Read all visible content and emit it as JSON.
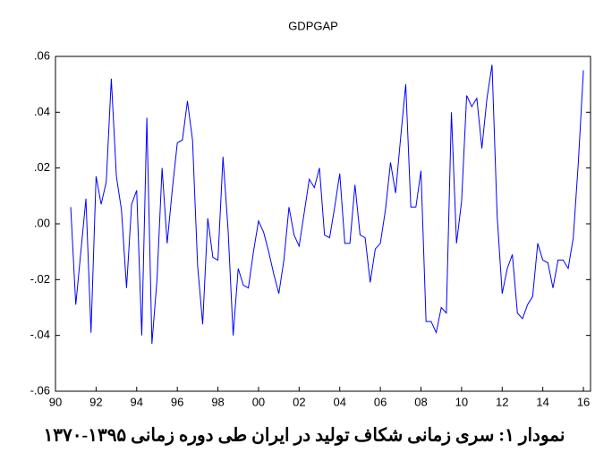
{
  "chart_data": {
    "type": "line",
    "title": "GDPGAP",
    "caption": "نمودار ۱: سری زمانی شکاف تولید در ایران طی دوره زمانی ۱۳۹۵-۱۳۷۰",
    "color": "#0000ff",
    "x": [
      1990.75,
      1991,
      1991.25,
      1991.5,
      1991.75,
      1992,
      1992.25,
      1992.5,
      1992.75,
      1993,
      1993.25,
      1993.5,
      1993.75,
      1994,
      1994.25,
      1994.5,
      1994.75,
      1995,
      1995.25,
      1995.5,
      1995.75,
      1996,
      1996.25,
      1996.5,
      1996.75,
      1997,
      1997.25,
      1997.5,
      1997.75,
      1998,
      1998.25,
      1998.5,
      1998.75,
      1999,
      1999.25,
      1999.5,
      1999.75,
      2000,
      2000.25,
      2000.5,
      2000.75,
      2001,
      2001.25,
      2001.5,
      2001.75,
      2002,
      2002.25,
      2002.5,
      2002.75,
      2003,
      2003.25,
      2003.5,
      2003.75,
      2004,
      2004.25,
      2004.5,
      2004.75,
      2005,
      2005.25,
      2005.5,
      2005.75,
      2006,
      2006.25,
      2006.5,
      2006.75,
      2007,
      2007.25,
      2007.5,
      2007.75,
      2008,
      2008.25,
      2008.5,
      2008.75,
      2009,
      2009.25,
      2009.5,
      2009.75,
      2010,
      2010.25,
      2010.5,
      2010.75,
      2011,
      2011.25,
      2011.5,
      2011.75,
      2012,
      2012.25,
      2012.5,
      2012.75,
      2013,
      2013.25,
      2013.5,
      2013.75,
      2014,
      2014.25,
      2014.5,
      2014.75,
      2015,
      2015.25,
      2015.5,
      2015.75,
      2016
    ],
    "values": [
      0.006,
      -0.029,
      -0.01,
      0.009,
      -0.039,
      0.017,
      0.007,
      0.015,
      0.052,
      0.017,
      0.005,
      -0.023,
      0.007,
      0.012,
      -0.04,
      0.038,
      -0.043,
      -0.02,
      0.02,
      -0.007,
      0.012,
      0.029,
      0.03,
      0.044,
      0.03,
      -0.015,
      -0.036,
      0.002,
      -0.012,
      -0.013,
      0.024,
      -0.002,
      -0.04,
      -0.016,
      -0.022,
      -0.023,
      -0.01,
      0.001,
      -0.003,
      -0.01,
      -0.018,
      -0.025,
      -0.013,
      0.006,
      -0.004,
      -0.008,
      0.004,
      0.016,
      0.013,
      0.02,
      -0.004,
      -0.005,
      0.006,
      0.018,
      -0.007,
      -0.007,
      0.014,
      -0.004,
      -0.005,
      -0.021,
      -0.009,
      -0.007,
      0.005,
      0.022,
      0.011,
      0.031,
      0.05,
      0.006,
      0.006,
      0.019,
      -0.035,
      -0.035,
      -0.039,
      -0.03,
      -0.032,
      0.04,
      -0.007,
      0.008,
      0.046,
      0.042,
      0.045,
      0.027,
      0.045,
      0.057,
      0.003,
      -0.025,
      -0.016,
      -0.011,
      -0.032,
      -0.034,
      -0.029,
      -0.026,
      -0.007,
      -0.013,
      -0.014,
      -0.023,
      -0.013,
      -0.013,
      -0.016,
      -0.005,
      0.022,
      0.055
    ],
    "xlim": [
      1990,
      2016.35
    ],
    "xticks": [
      {
        "value": 1990,
        "label": "90"
      },
      {
        "value": 1992,
        "label": "92"
      },
      {
        "value": 1994,
        "label": "94"
      },
      {
        "value": 1996,
        "label": "96"
      },
      {
        "value": 1998,
        "label": "98"
      },
      {
        "value": 2000,
        "label": "00"
      },
      {
        "value": 2002,
        "label": "02"
      },
      {
        "value": 2004,
        "label": "04"
      },
      {
        "value": 2006,
        "label": "06"
      },
      {
        "value": 2008,
        "label": "08"
      },
      {
        "value": 2010,
        "label": "10"
      },
      {
        "value": 2012,
        "label": "12"
      },
      {
        "value": 2014,
        "label": "14"
      },
      {
        "value": 2016,
        "label": "16"
      }
    ],
    "ylim": [
      -0.06,
      0.06
    ],
    "yticks": [
      {
        "value": -0.06,
        "label": "-.06"
      },
      {
        "value": -0.04,
        "label": "-.04"
      },
      {
        "value": -0.02,
        "label": "-.02"
      },
      {
        "value": 0,
        "label": ".00"
      },
      {
        "value": 0.02,
        "label": ".02"
      },
      {
        "value": 0.04,
        "label": ".04"
      },
      {
        "value": 0.06,
        "label": ".06"
      }
    ]
  }
}
